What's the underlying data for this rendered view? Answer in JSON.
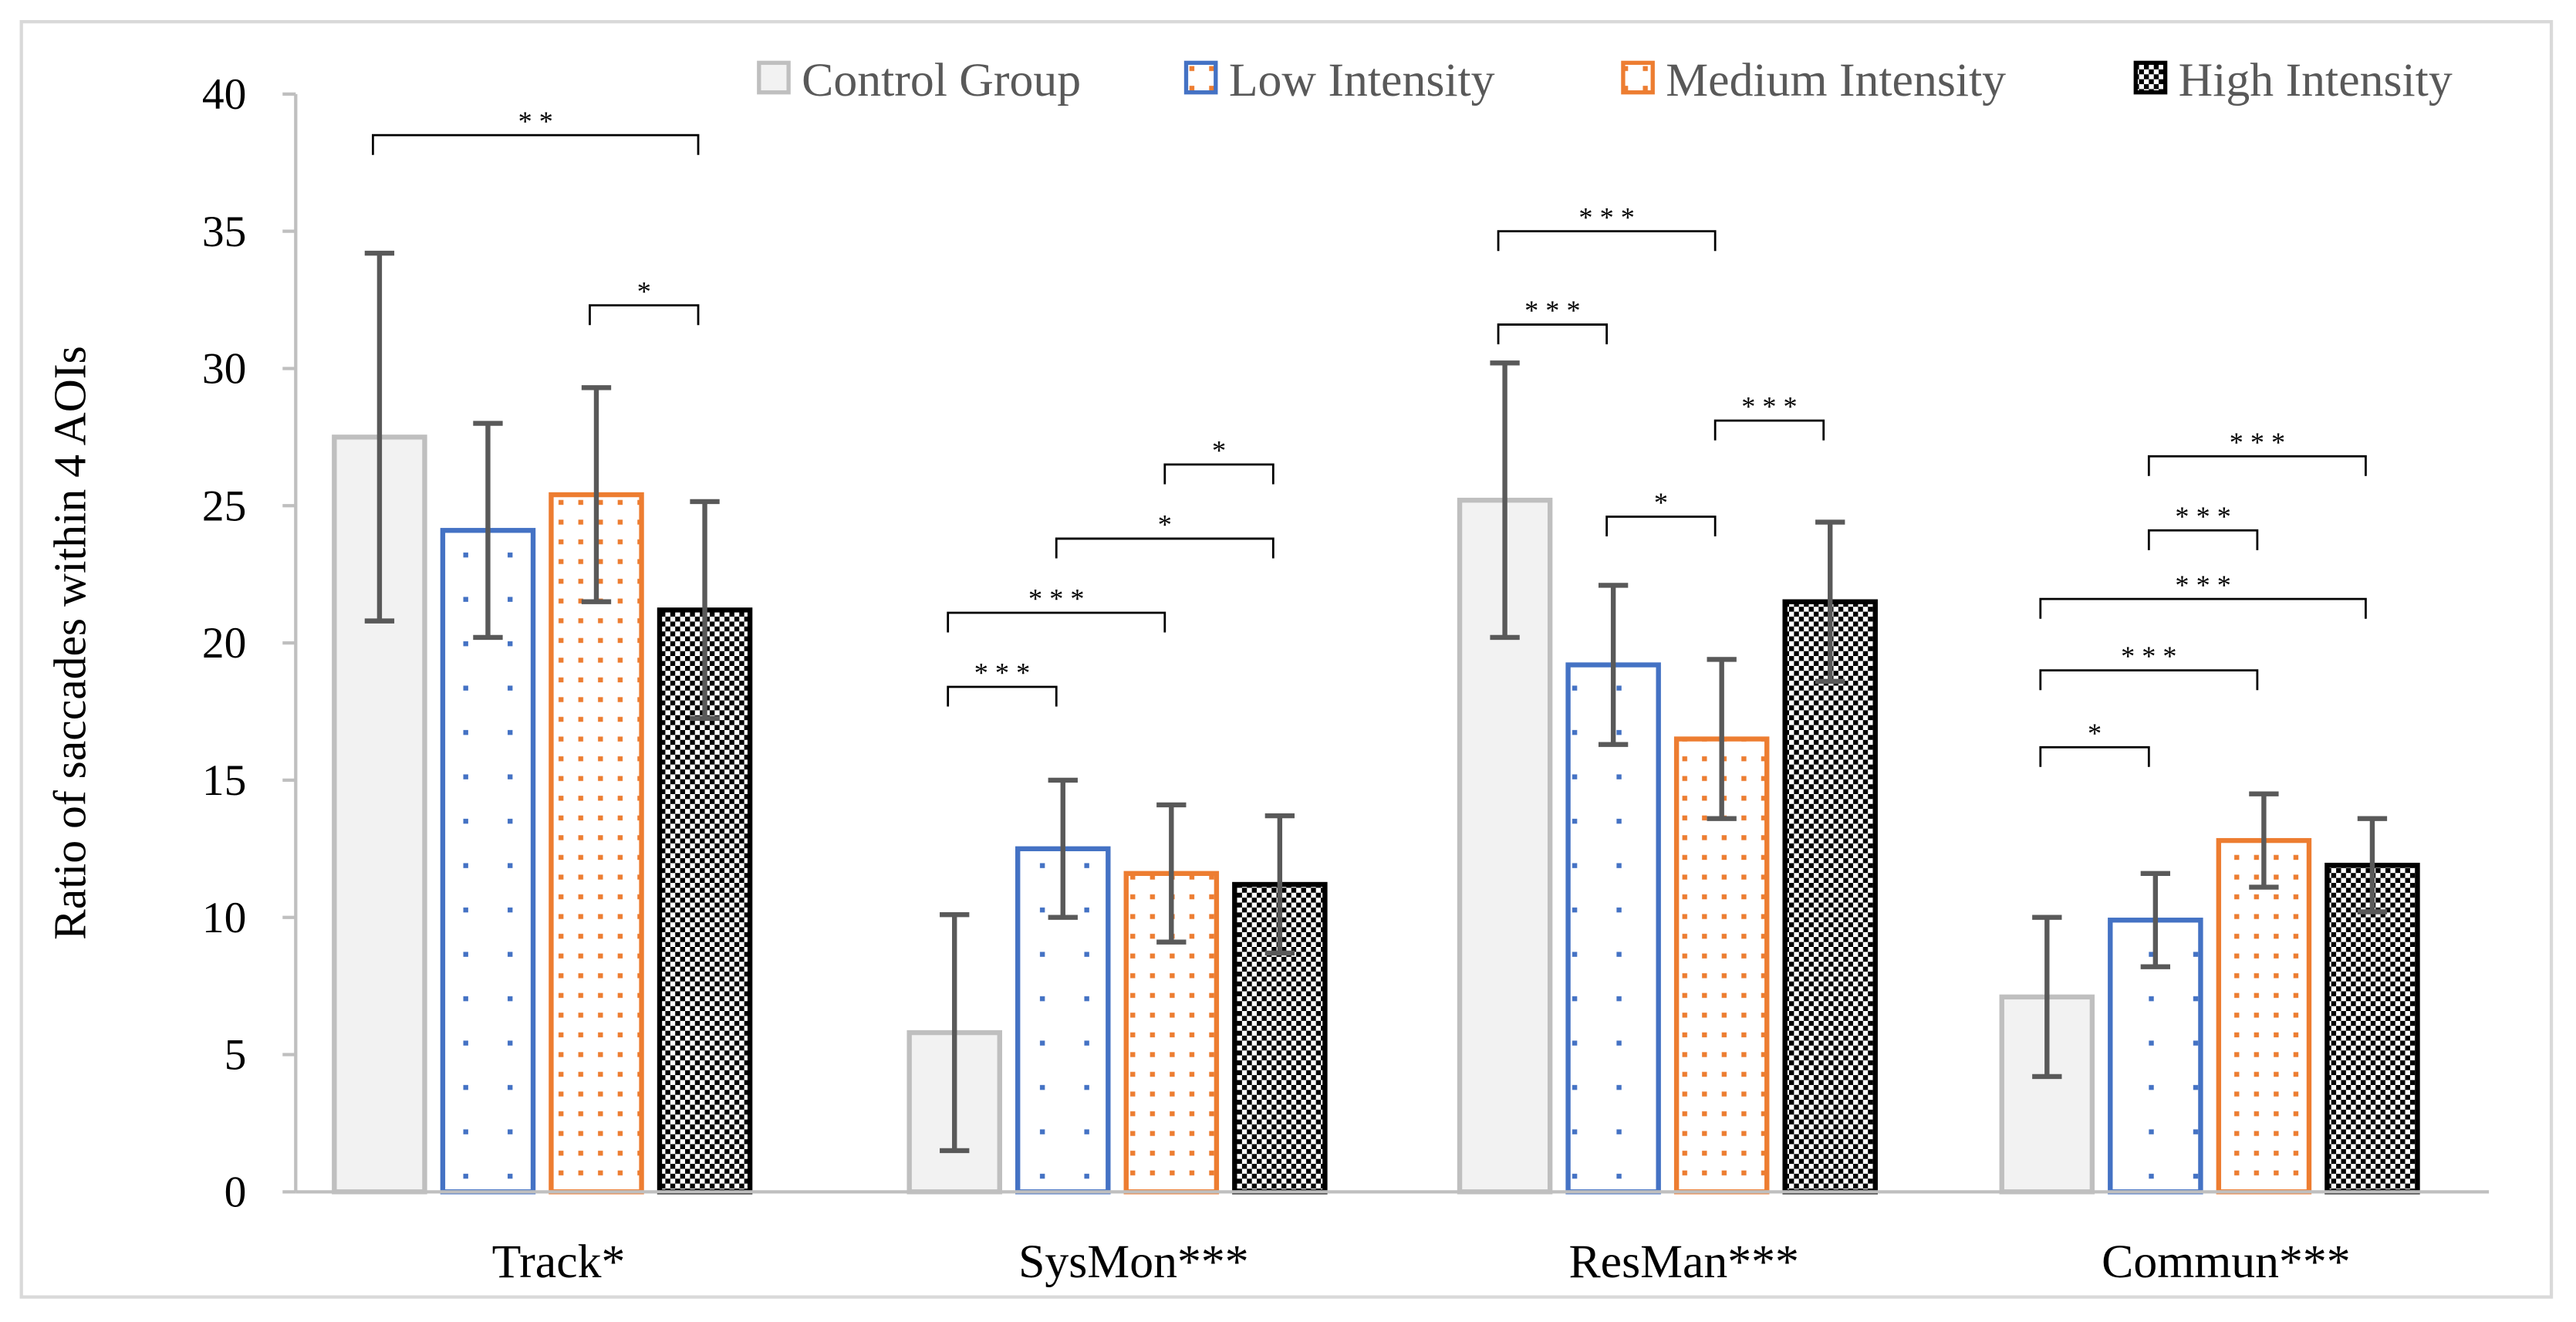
{
  "chart_data": {
    "type": "bar",
    "title": "",
    "xlabel": "",
    "ylabel": "Ratio of saccades within 4 AOIs",
    "ylim": [
      0,
      40
    ],
    "yticks": [
      "0",
      "5",
      "10",
      "15",
      "20",
      "25",
      "30",
      "35",
      "40"
    ],
    "grid": false,
    "legend_position": "top-right",
    "categories": [
      "Track*",
      "SysMon***",
      "ResMan***",
      "Commun***"
    ],
    "series": [
      {
        "name": "Control Group",
        "color": "#bfbfbf",
        "fill": "#f2f2f2",
        "pattern": "solid",
        "values": [
          27.5,
          5.8,
          25.2,
          7.1
        ],
        "errors": [
          6.7,
          4.3,
          5.0,
          2.9
        ]
      },
      {
        "name": "Low Intensity",
        "color": "#4472c4",
        "fill": "#ffffff",
        "pattern": "sparse-dots",
        "values": [
          24.1,
          12.5,
          19.2,
          9.9
        ],
        "errors": [
          3.9,
          2.5,
          2.9,
          1.7
        ]
      },
      {
        "name": "Medium Intensity",
        "color": "#ed7d31",
        "fill": "#ffffff",
        "pattern": "dense-dots",
        "values": [
          25.4,
          11.6,
          16.5,
          12.8
        ],
        "errors": [
          3.9,
          2.5,
          2.9,
          1.7
        ]
      },
      {
        "name": "High Intensity",
        "color": "#000000",
        "fill": "#ffffff",
        "pattern": "checker",
        "values": [
          21.2,
          11.2,
          21.5,
          11.9
        ],
        "errors": [
          3.95,
          2.5,
          2.9,
          1.7
        ]
      }
    ],
    "significance": [
      {
        "category": 0,
        "from": 0,
        "to": 3,
        "level": 38.5,
        "label": "* *"
      },
      {
        "category": 0,
        "from": 2,
        "to": 3,
        "level": 32.3,
        "label": "*"
      },
      {
        "category": 1,
        "from": 2,
        "to": 3,
        "level": 26.5,
        "label": "*"
      },
      {
        "category": 1,
        "from": 1,
        "to": 3,
        "level": 23.8,
        "label": "*"
      },
      {
        "category": 1,
        "from": 0,
        "to": 2,
        "level": 21.1,
        "label": "* * *"
      },
      {
        "category": 1,
        "from": 0,
        "to": 1,
        "level": 18.4,
        "label": "* * *"
      },
      {
        "category": 2,
        "from": 0,
        "to": 2,
        "level": 35.0,
        "label": "* * *"
      },
      {
        "category": 2,
        "from": 0,
        "to": 1,
        "level": 31.6,
        "label": "* * *"
      },
      {
        "category": 2,
        "from": 2,
        "to": 3,
        "level": 28.1,
        "label": "* * *"
      },
      {
        "category": 2,
        "from": 1,
        "to": 2,
        "level": 24.6,
        "label": "*"
      },
      {
        "category": 3,
        "from": 1,
        "to": 3,
        "level": 26.8,
        "label": "* * *"
      },
      {
        "category": 3,
        "from": 1,
        "to": 2,
        "level": 24.1,
        "label": "* * *"
      },
      {
        "category": 3,
        "from": 0,
        "to": 3,
        "level": 21.6,
        "label": "* * *"
      },
      {
        "category": 3,
        "from": 0,
        "to": 2,
        "level": 19.0,
        "label": "* * *"
      },
      {
        "category": 3,
        "from": 0,
        "to": 1,
        "level": 16.2,
        "label": "*"
      }
    ]
  }
}
